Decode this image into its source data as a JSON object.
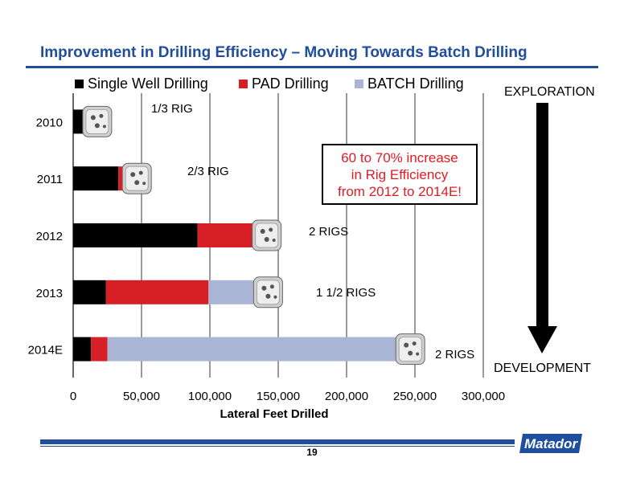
{
  "slide": {
    "title": "Improvement in Drilling Efficiency – Moving Towards Batch Drilling",
    "page_number": "19",
    "callout": [
      "60 to 70% increase",
      "in Rig Efficiency",
      "from 2012 to 2014E!"
    ],
    "exploration_label": "EXPLORATION",
    "development_label": "DEVELOPMENT",
    "logo_text": "Matador",
    "brand_color": "#1f4e9c"
  },
  "chart_data": {
    "type": "bar",
    "orientation": "horizontal",
    "stacked": true,
    "categories": [
      "2010",
      "2011",
      "2012",
      "2013",
      "2014E"
    ],
    "series": [
      {
        "name": "Single Well Drilling",
        "color": "#000000",
        "values": [
          7000,
          33000,
          91000,
          24000,
          13000
        ]
      },
      {
        "name": "PAD Drilling",
        "color": "#d71f26",
        "values": [
          0,
          3000,
          40000,
          75000,
          12000
        ]
      },
      {
        "name": "BATCH Drilling",
        "color": "#aab5d6",
        "values": [
          0,
          0,
          0,
          33000,
          211000
        ]
      }
    ],
    "rig_labels": [
      "1/3 RIG",
      "2/3 RIG",
      "2 RIGS",
      "1 1/2 RIGS",
      "2 RIGS"
    ],
    "xlabel": "Lateral Feet Drilled",
    "xlim": [
      0,
      300000
    ],
    "xticks": [
      0,
      50000,
      100000,
      150000,
      200000,
      250000,
      300000
    ],
    "xtick_labels": [
      "0",
      "50,000",
      "100,000",
      "150,000",
      "200,000",
      "250,000",
      "300,000"
    ],
    "grid": "vertical",
    "legend_position": "top"
  }
}
